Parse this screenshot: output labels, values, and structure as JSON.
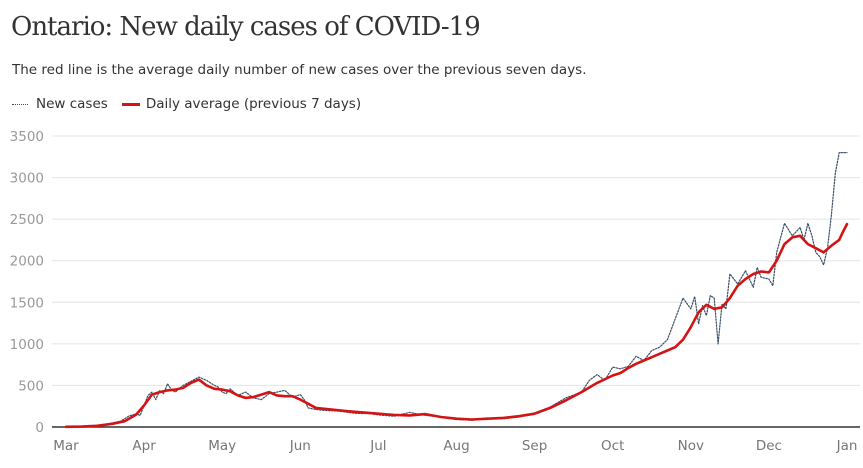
{
  "header": {
    "title": "Ontario: New daily cases of COVID-19",
    "subtitle": "The red line is the average daily number of new cases over the previous seven days."
  },
  "legend": {
    "items": [
      {
        "label": "New cases",
        "style": "dotted",
        "color": "#3a4f66"
      },
      {
        "label": "Daily average (previous 7 days)",
        "style": "solid",
        "color": "#d41414"
      }
    ]
  },
  "chart_data": {
    "type": "line",
    "title": "Ontario: New daily cases of COVID-19",
    "xlabel": "",
    "ylabel": "",
    "ylim": [
      0,
      3500
    ],
    "yticks": [
      0,
      500,
      1000,
      1500,
      2000,
      2500,
      3000,
      3500
    ],
    "ytick_labels": [
      "0",
      "500",
      "1000",
      "1500",
      "2000",
      "2500",
      "3000",
      "3500"
    ],
    "xtick_labels": [
      "Mar",
      "Apr",
      "May",
      "Jun",
      "Jul",
      "Aug",
      "Sep",
      "Oct",
      "Nov",
      "Dec",
      "Jan"
    ],
    "x_unit": "months since Mar 1",
    "xlim": [
      0,
      10
    ],
    "grid": true,
    "legend_position": "top-left",
    "series": [
      {
        "name": "New cases",
        "style": "dotted",
        "color": "#3a4f66",
        "x": [
          0,
          0.2,
          0.35,
          0.5,
          0.6,
          0.7,
          0.8,
          0.9,
          0.95,
          1.0,
          1.05,
          1.1,
          1.15,
          1.2,
          1.25,
          1.3,
          1.35,
          1.4,
          1.5,
          1.6,
          1.7,
          1.8,
          1.9,
          1.95,
          2.0,
          2.05,
          2.1,
          2.2,
          2.3,
          2.4,
          2.5,
          2.6,
          2.7,
          2.8,
          2.9,
          3.0,
          3.05,
          3.1,
          3.2,
          3.3,
          3.5,
          3.7,
          3.9,
          4.0,
          4.2,
          4.4,
          4.6,
          4.8,
          5.0,
          5.2,
          5.4,
          5.6,
          5.8,
          6.0,
          6.2,
          6.4,
          6.6,
          6.7,
          6.8,
          6.9,
          7.0,
          7.1,
          7.2,
          7.3,
          7.4,
          7.5,
          7.6,
          7.7,
          7.8,
          7.9,
          8.0,
          8.05,
          8.1,
          8.15,
          8.2,
          8.25,
          8.3,
          8.35,
          8.4,
          8.45,
          8.5,
          8.55,
          8.6,
          8.7,
          8.8,
          8.85,
          8.9,
          9.0,
          9.05,
          9.1,
          9.2,
          9.3,
          9.4,
          9.45,
          9.5,
          9.55,
          9.6,
          9.65,
          9.7,
          9.75,
          9.8,
          9.85,
          9.9,
          9.95,
          10.0
        ],
        "values": [
          5,
          8,
          15,
          30,
          50,
          70,
          130,
          160,
          140,
          260,
          380,
          420,
          330,
          440,
          400,
          520,
          450,
          420,
          500,
          550,
          600,
          560,
          500,
          480,
          420,
          400,
          460,
          380,
          420,
          350,
          330,
          400,
          420,
          440,
          360,
          390,
          330,
          230,
          210,
          200,
          190,
          165,
          160,
          145,
          130,
          175,
          140,
          120,
          90,
          80,
          110,
          100,
          120,
          170,
          240,
          350,
          420,
          560,
          630,
          560,
          720,
          700,
          730,
          850,
          800,
          920,
          960,
          1050,
          1300,
          1550,
          1420,
          1570,
          1240,
          1460,
          1340,
          1580,
          1550,
          1000,
          1480,
          1420,
          1840,
          1780,
          1720,
          1880,
          1680,
          1920,
          1800,
          1780,
          1700,
          2100,
          2450,
          2300,
          2400,
          2250,
          2450,
          2300,
          2100,
          2050,
          1950,
          2150,
          2550,
          3050,
          3300,
          3300,
          3300
        ]
      },
      {
        "name": "Daily average (previous 7 days)",
        "style": "solid",
        "color": "#d41414",
        "x": [
          0,
          0.2,
          0.4,
          0.6,
          0.75,
          0.9,
          1.0,
          1.1,
          1.2,
          1.3,
          1.4,
          1.5,
          1.6,
          1.7,
          1.8,
          1.9,
          2.0,
          2.1,
          2.2,
          2.3,
          2.4,
          2.5,
          2.6,
          2.7,
          2.8,
          2.9,
          3.0,
          3.1,
          3.2,
          3.4,
          3.6,
          3.8,
          4.0,
          4.2,
          4.4,
          4.6,
          4.8,
          5.0,
          5.2,
          5.4,
          5.6,
          5.8,
          6.0,
          6.2,
          6.4,
          6.6,
          6.8,
          7.0,
          7.1,
          7.2,
          7.3,
          7.4,
          7.5,
          7.6,
          7.7,
          7.8,
          7.9,
          8.0,
          8.1,
          8.2,
          8.3,
          8.4,
          8.5,
          8.6,
          8.7,
          8.8,
          8.9,
          9.0,
          9.1,
          9.2,
          9.3,
          9.4,
          9.5,
          9.6,
          9.7,
          9.8,
          9.9,
          9.95,
          10.0
        ],
        "values": [
          2,
          5,
          15,
          40,
          70,
          150,
          260,
          390,
          420,
          440,
          450,
          470,
          530,
          570,
          500,
          460,
          450,
          430,
          380,
          350,
          360,
          390,
          420,
          380,
          370,
          370,
          330,
          280,
          230,
          210,
          190,
          175,
          160,
          145,
          140,
          155,
          120,
          100,
          90,
          100,
          110,
          130,
          160,
          230,
          320,
          420,
          530,
          620,
          650,
          710,
          760,
          800,
          840,
          880,
          920,
          960,
          1050,
          1200,
          1380,
          1470,
          1420,
          1440,
          1550,
          1700,
          1780,
          1840,
          1870,
          1860,
          2000,
          2200,
          2280,
          2300,
          2200,
          2150,
          2100,
          2180,
          2250,
          2350,
          2440
        ]
      }
    ]
  }
}
